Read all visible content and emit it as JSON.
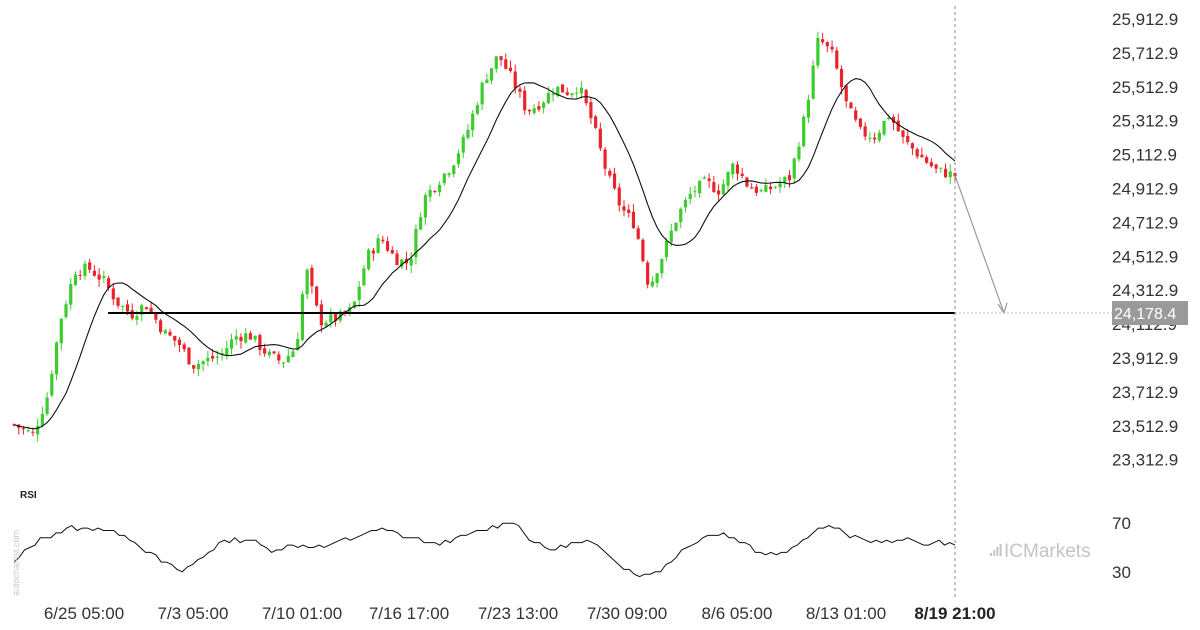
{
  "chart_data": {
    "type": "candlestick",
    "price_axis": {
      "ticks": [
        "25,912.9",
        "25,712.9",
        "25,512.9",
        "25,312.9",
        "25,112.9",
        "24,912.9",
        "24,712.9",
        "24,512.9",
        "24,312.9",
        "24,112.9",
        "23,912.9",
        "23,712.9",
        "23,512.9",
        "23,312.9"
      ],
      "tick_values": [
        25912.9,
        25712.9,
        25512.9,
        25312.9,
        25112.9,
        24912.9,
        24712.9,
        24512.9,
        24312.9,
        24112.9,
        23912.9,
        23712.9,
        23512.9,
        23312.9
      ],
      "range": [
        23240,
        25990
      ]
    },
    "time_axis": {
      "labels": [
        "6/25 05:00",
        "7/3 05:00",
        "7/10 01:00",
        "7/16 17:00",
        "7/23 13:00",
        "7/30 09:00",
        "8/6 05:00",
        "8/13 01:00",
        "8/19 21:00"
      ],
      "highlighted": "8/19 21:00"
    },
    "support_level": 24178.4,
    "support_label": "24,178.4",
    "forecast_target": 24178.4,
    "rsi": {
      "label": "RSI",
      "ticks": [
        "70",
        "30"
      ],
      "tick_values": [
        70,
        30
      ],
      "range": [
        15,
        85
      ]
    },
    "close_path": [
      {
        "t": 0,
        "p": 23520
      },
      {
        "t": 0.02,
        "p": 23460
      },
      {
        "t": 0.035,
        "p": 23680
      },
      {
        "t": 0.05,
        "p": 24150
      },
      {
        "t": 0.065,
        "p": 24430
      },
      {
        "t": 0.08,
        "p": 24440
      },
      {
        "t": 0.095,
        "p": 24370
      },
      {
        "t": 0.11,
        "p": 24240
      },
      {
        "t": 0.125,
        "p": 24170
      },
      {
        "t": 0.14,
        "p": 24230
      },
      {
        "t": 0.16,
        "p": 24060
      },
      {
        "t": 0.175,
        "p": 24000
      },
      {
        "t": 0.19,
        "p": 23870
      },
      {
        "t": 0.205,
        "p": 23900
      },
      {
        "t": 0.22,
        "p": 23930
      },
      {
        "t": 0.235,
        "p": 24040
      },
      {
        "t": 0.25,
        "p": 24050
      },
      {
        "t": 0.27,
        "p": 23930
      },
      {
        "t": 0.285,
        "p": 23890
      },
      {
        "t": 0.3,
        "p": 23980
      },
      {
        "t": 0.31,
        "p": 24450
      },
      {
        "t": 0.325,
        "p": 24130
      },
      {
        "t": 0.345,
        "p": 24150
      },
      {
        "t": 0.36,
        "p": 24200
      },
      {
        "t": 0.375,
        "p": 24510
      },
      {
        "t": 0.39,
        "p": 24620
      },
      {
        "t": 0.405,
        "p": 24500
      },
      {
        "t": 0.42,
        "p": 24470
      },
      {
        "t": 0.435,
        "p": 24850
      },
      {
        "t": 0.45,
        "p": 24950
      },
      {
        "t": 0.465,
        "p": 25050
      },
      {
        "t": 0.48,
        "p": 25220
      },
      {
        "t": 0.5,
        "p": 25560
      },
      {
        "t": 0.515,
        "p": 25700
      },
      {
        "t": 0.53,
        "p": 25550
      },
      {
        "t": 0.545,
        "p": 25370
      },
      {
        "t": 0.56,
        "p": 25420
      },
      {
        "t": 0.575,
        "p": 25510
      },
      {
        "t": 0.59,
        "p": 25480
      },
      {
        "t": 0.6,
        "p": 25520
      },
      {
        "t": 0.615,
        "p": 25300
      },
      {
        "t": 0.63,
        "p": 25000
      },
      {
        "t": 0.645,
        "p": 24800
      },
      {
        "t": 0.66,
        "p": 24700
      },
      {
        "t": 0.675,
        "p": 24330
      },
      {
        "t": 0.69,
        "p": 24530
      },
      {
        "t": 0.705,
        "p": 24750
      },
      {
        "t": 0.72,
        "p": 24890
      },
      {
        "t": 0.735,
        "p": 24950
      },
      {
        "t": 0.75,
        "p": 24900
      },
      {
        "t": 0.765,
        "p": 25060
      },
      {
        "t": 0.78,
        "p": 24930
      },
      {
        "t": 0.795,
        "p": 24890
      },
      {
        "t": 0.81,
        "p": 24930
      },
      {
        "t": 0.825,
        "p": 24980
      },
      {
        "t": 0.84,
        "p": 25330
      },
      {
        "t": 0.855,
        "p": 25800
      },
      {
        "t": 0.87,
        "p": 25700
      },
      {
        "t": 0.885,
        "p": 25400
      },
      {
        "t": 0.9,
        "p": 25240
      },
      {
        "t": 0.915,
        "p": 25220
      },
      {
        "t": 0.93,
        "p": 25350
      },
      {
        "t": 0.945,
        "p": 25200
      },
      {
        "t": 0.96,
        "p": 25120
      },
      {
        "t": 0.98,
        "p": 25020
      },
      {
        "t": 1,
        "p": 24990
      }
    ],
    "rsi_path": [
      {
        "t": 0,
        "v": 38
      },
      {
        "t": 0.03,
        "v": 58
      },
      {
        "t": 0.06,
        "v": 66
      },
      {
        "t": 0.09,
        "v": 66
      },
      {
        "t": 0.12,
        "v": 60
      },
      {
        "t": 0.14,
        "v": 48
      },
      {
        "t": 0.16,
        "v": 37
      },
      {
        "t": 0.18,
        "v": 30
      },
      {
        "t": 0.2,
        "v": 42
      },
      {
        "t": 0.22,
        "v": 54
      },
      {
        "t": 0.25,
        "v": 58
      },
      {
        "t": 0.27,
        "v": 48
      },
      {
        "t": 0.3,
        "v": 52
      },
      {
        "t": 0.33,
        "v": 50
      },
      {
        "t": 0.36,
        "v": 58
      },
      {
        "t": 0.39,
        "v": 66
      },
      {
        "t": 0.42,
        "v": 58
      },
      {
        "t": 0.45,
        "v": 52
      },
      {
        "t": 0.48,
        "v": 60
      },
      {
        "t": 0.51,
        "v": 67
      },
      {
        "t": 0.53,
        "v": 72
      },
      {
        "t": 0.55,
        "v": 55
      },
      {
        "t": 0.57,
        "v": 48
      },
      {
        "t": 0.59,
        "v": 52
      },
      {
        "t": 0.61,
        "v": 55
      },
      {
        "t": 0.63,
        "v": 46
      },
      {
        "t": 0.65,
        "v": 32
      },
      {
        "t": 0.67,
        "v": 26
      },
      {
        "t": 0.69,
        "v": 33
      },
      {
        "t": 0.71,
        "v": 48
      },
      {
        "t": 0.73,
        "v": 58
      },
      {
        "t": 0.75,
        "v": 62
      },
      {
        "t": 0.77,
        "v": 56
      },
      {
        "t": 0.79,
        "v": 47
      },
      {
        "t": 0.81,
        "v": 45
      },
      {
        "t": 0.83,
        "v": 50
      },
      {
        "t": 0.85,
        "v": 65
      },
      {
        "t": 0.87,
        "v": 67
      },
      {
        "t": 0.89,
        "v": 58
      },
      {
        "t": 0.91,
        "v": 55
      },
      {
        "t": 0.93,
        "v": 55
      },
      {
        "t": 0.95,
        "v": 56
      },
      {
        "t": 0.97,
        "v": 53
      },
      {
        "t": 1,
        "v": 54
      }
    ],
    "colors": {
      "up": "#3dcc2e",
      "down": "#e8252b",
      "ma": "#111111",
      "support": "#000000",
      "forecast": "#999999",
      "price_tag_bg": "#9a9a9a"
    }
  },
  "watermark": "autochartist.com",
  "brand": "ICMarkets"
}
